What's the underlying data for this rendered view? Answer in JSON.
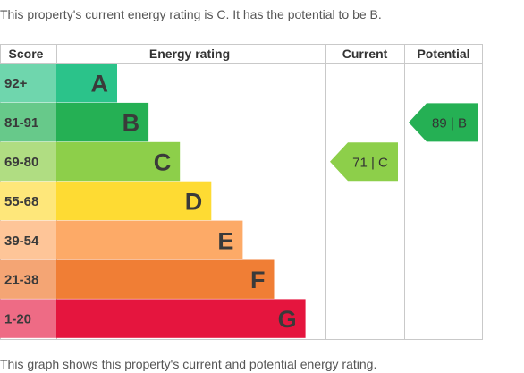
{
  "intro_text": "This property's current energy rating is C. It has the potential to be B.",
  "footnote_text": "This graph shows this property's current and potential energy rating.",
  "chart_data": {
    "type": "bar",
    "headers": {
      "score": "Score",
      "rating": "Energy rating",
      "current": "Current",
      "potential": "Potential"
    },
    "bands": [
      {
        "letter": "A",
        "score": "92+",
        "color": "#2bc38a",
        "tint": "#6fd6ad"
      },
      {
        "letter": "B",
        "score": "81-91",
        "color": "#25b054",
        "tint": "#67c98a"
      },
      {
        "letter": "C",
        "score": "69-80",
        "color": "#8dcf4a",
        "tint": "#b0dd82"
      },
      {
        "letter": "D",
        "score": "55-68",
        "color": "#fedb33",
        "tint": "#fee77a"
      },
      {
        "letter": "E",
        "score": "39-54",
        "color": "#fdaa67",
        "tint": "#fec598"
      },
      {
        "letter": "F",
        "score": "21-38",
        "color": "#f07e35",
        "tint": "#f4a574"
      },
      {
        "letter": "G",
        "score": "1-20",
        "color": "#e5153e",
        "tint": "#ee6b85"
      }
    ],
    "current": {
      "value": 71,
      "band": "C",
      "label": "71 | C",
      "color": "#8dcf4a"
    },
    "potential": {
      "value": 89,
      "band": "B",
      "label": "89 | B",
      "color": "#25b054"
    }
  }
}
